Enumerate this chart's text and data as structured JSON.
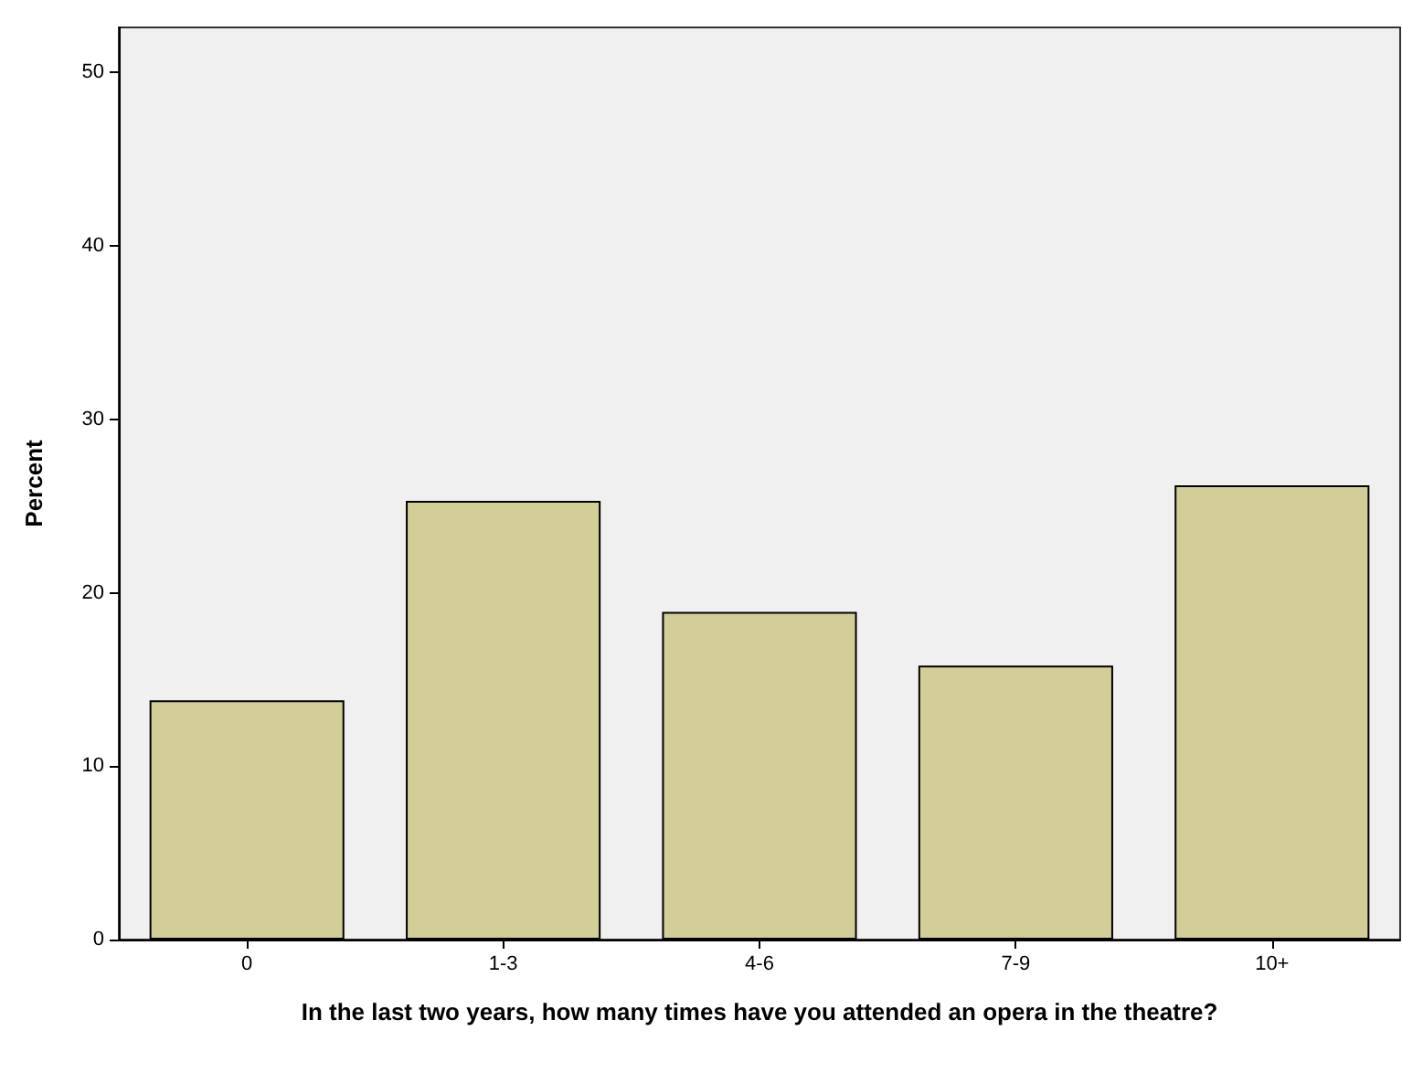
{
  "chart_data": {
    "type": "bar",
    "xlabel": "In the last two years, how many times have you attended an opera in the theatre?",
    "ylabel": "Percent",
    "categories": [
      "0",
      "1-3",
      "4-6",
      "7-9",
      "10+"
    ],
    "values": [
      13.8,
      25.3,
      18.9,
      15.8,
      26.2
    ],
    "color": "#d3ce97",
    "ylim": [
      0,
      52.6
    ],
    "yticks": [
      0,
      10,
      20,
      30,
      40,
      50
    ],
    "grid": false
  }
}
